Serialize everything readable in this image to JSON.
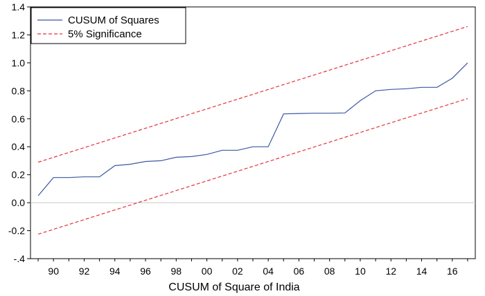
{
  "chart_data": {
    "type": "line",
    "title": "",
    "xlabel": "CUSUM of Square of India",
    "ylabel": "",
    "xlim": [
      1988.5,
      2017.5
    ],
    "ylim": [
      -0.4,
      1.4
    ],
    "yticks": [
      -0.4,
      -0.2,
      0.0,
      0.2,
      0.4,
      0.6,
      0.8,
      1.0,
      1.2,
      1.4
    ],
    "ytick_labels": [
      "-.4",
      "-0.2",
      "0.0",
      "0.2",
      "0.4",
      "0.6",
      "0.8",
      "1.0",
      "1.2",
      "1.4"
    ],
    "xticks": [
      1990,
      1992,
      1994,
      1996,
      1998,
      2000,
      2002,
      2004,
      2006,
      2008,
      2010,
      2012,
      2014,
      2016
    ],
    "xtick_labels": [
      "90",
      "92",
      "94",
      "96",
      "98",
      "00",
      "02",
      "04",
      "06",
      "08",
      "10",
      "12",
      "14",
      "16"
    ],
    "zero_line": true,
    "grid": false,
    "legend": {
      "placement": "top-left",
      "entries": [
        "CUSUM of Squares",
        "5% Significance"
      ]
    },
    "series": [
      {
        "name": "CUSUM of Squares",
        "color": "#3a57a0",
        "style": "solid",
        "x": [
          1989,
          1990,
          1991,
          1992,
          1993,
          1994,
          1995,
          1996,
          1997,
          1998,
          1999,
          2000,
          2001,
          2002,
          2003,
          2004,
          2005,
          2006,
          2007,
          2008,
          2009,
          2010,
          2011,
          2012,
          2013,
          2014,
          2015,
          2016,
          2017
        ],
        "values": [
          0.05,
          0.18,
          0.18,
          0.185,
          0.185,
          0.265,
          0.275,
          0.295,
          0.3,
          0.325,
          0.33,
          0.345,
          0.375,
          0.375,
          0.4,
          0.4,
          0.635,
          0.638,
          0.64,
          0.64,
          0.642,
          0.73,
          0.8,
          0.81,
          0.815,
          0.825,
          0.825,
          0.89,
          1.0
        ]
      },
      {
        "name": "5% Significance",
        "color": "#e8303a",
        "style": "dashed",
        "x": [
          1989,
          2017
        ],
        "values": [
          0.29,
          1.26
        ]
      },
      {
        "name": "5% Significance",
        "color": "#e8303a",
        "style": "dashed",
        "x": [
          1989,
          2017
        ],
        "values": [
          -0.225,
          0.745
        ]
      }
    ]
  }
}
